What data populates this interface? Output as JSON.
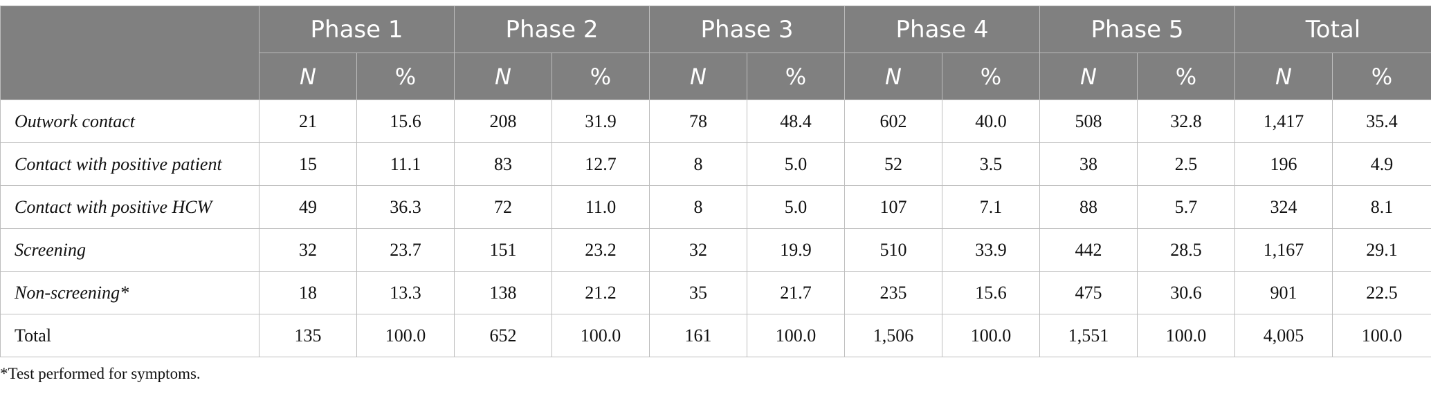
{
  "table": {
    "phases": [
      "Phase 1",
      "Phase 2",
      "Phase 3",
      "Phase 4",
      "Phase 5",
      "Total"
    ],
    "sub_headers": {
      "n": "N",
      "pct": "%"
    },
    "rows": [
      {
        "label": "Outwork contact",
        "italic": true,
        "cells": [
          "21",
          "15.6",
          "208",
          "31.9",
          "78",
          "48.4",
          "602",
          "40.0",
          "508",
          "32.8",
          "1,417",
          "35.4"
        ]
      },
      {
        "label": "Contact with positive patient",
        "italic": true,
        "cells": [
          "15",
          "11.1",
          "83",
          "12.7",
          "8",
          "5.0",
          "52",
          "3.5",
          "38",
          "2.5",
          "196",
          "4.9"
        ]
      },
      {
        "label": "Contact with positive HCW",
        "italic": true,
        "cells": [
          "49",
          "36.3",
          "72",
          "11.0",
          "8",
          "5.0",
          "107",
          "7.1",
          "88",
          "5.7",
          "324",
          "8.1"
        ]
      },
      {
        "label": "Screening",
        "italic": true,
        "cells": [
          "32",
          "23.7",
          "151",
          "23.2",
          "32",
          "19.9",
          "510",
          "33.9",
          "442",
          "28.5",
          "1,167",
          "29.1"
        ]
      },
      {
        "label": "Non-screening*",
        "italic": true,
        "cells": [
          "18",
          "13.3",
          "138",
          "21.2",
          "35",
          "21.7",
          "235",
          "15.6",
          "475",
          "30.6",
          "901",
          "22.5"
        ]
      },
      {
        "label": "Total",
        "italic": false,
        "cells": [
          "135",
          "100.0",
          "652",
          "100.0",
          "161",
          "100.0",
          "1,506",
          "100.0",
          "1,551",
          "100.0",
          "4,005",
          "100.0"
        ]
      }
    ]
  },
  "footnote": "*Test performed for symptoms.",
  "colors": {
    "header_bg": "#808080",
    "header_text": "#ffffff",
    "border": "#bdbdbd"
  }
}
